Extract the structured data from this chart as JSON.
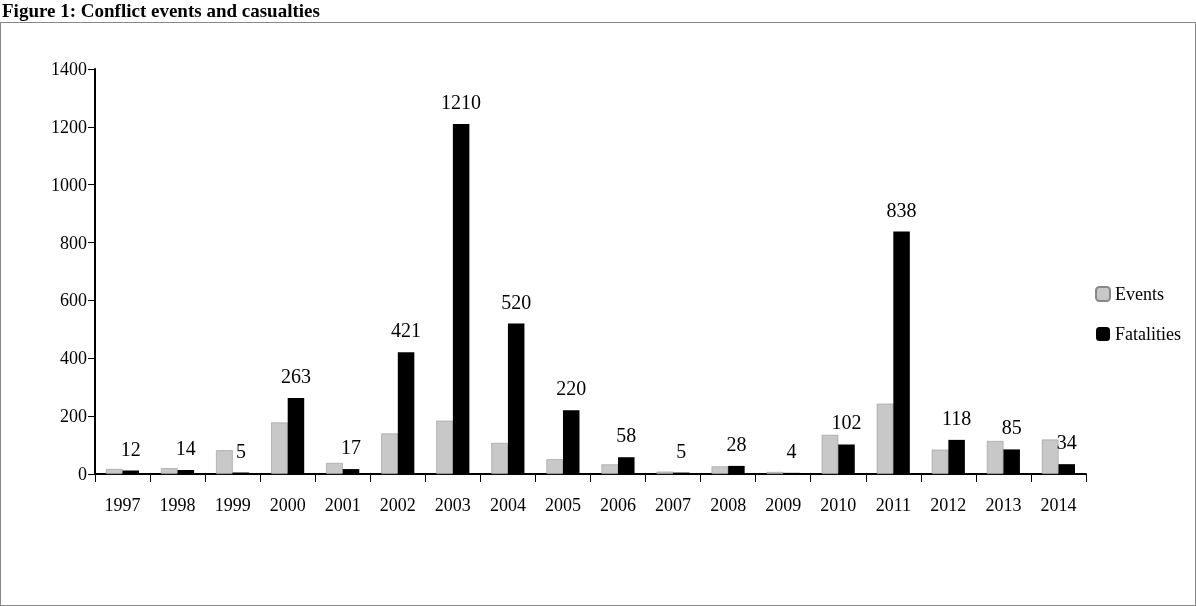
{
  "chart_data": {
    "type": "bar",
    "title": "Figure 1: Conflict events and casualties",
    "categories": [
      "1997",
      "1998",
      "1999",
      "2000",
      "2001",
      "2002",
      "2003",
      "2004",
      "2005",
      "2006",
      "2007",
      "2008",
      "2009",
      "2010",
      "2011",
      "2012",
      "2013",
      "2014"
    ],
    "series": [
      {
        "name": "Events",
        "color": "#c8c8c8",
        "values": [
          17,
          20,
          82,
          178,
          38,
          140,
          184,
          107,
          51,
          33,
          8,
          26,
          7,
          135,
          243,
          84,
          114,
          119
        ]
      },
      {
        "name": "Fatalities",
        "color": "#000000",
        "values": [
          12,
          14,
          5,
          263,
          17,
          421,
          1210,
          520,
          220,
          58,
          5,
          28,
          4,
          102,
          838,
          118,
          85,
          34
        ],
        "value_labels": [
          "12",
          "14",
          "5",
          "263",
          "17",
          "421",
          "1210",
          "520",
          "220",
          "58",
          "5",
          "28",
          "4",
          "102",
          "838",
          "118",
          "85",
          "34"
        ]
      }
    ],
    "ylim": [
      0,
      1400
    ],
    "yticks": [
      0,
      200,
      400,
      600,
      800,
      1000,
      1200,
      1400
    ],
    "grid": false,
    "legend": "right"
  }
}
